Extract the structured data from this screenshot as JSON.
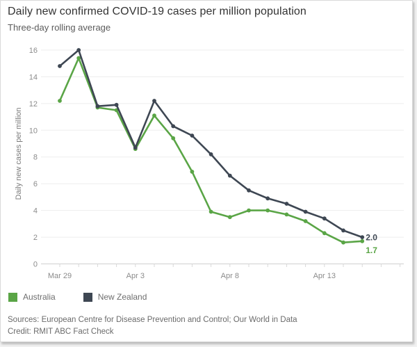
{
  "header": {
    "title": "Daily new confirmed COVID-19 cases per million population",
    "subtitle": "Three-day rolling average"
  },
  "chart_data": {
    "type": "line",
    "title": "Daily new confirmed COVID-19 cases per million population",
    "subtitle": "Three-day rolling average",
    "xlabel": "",
    "ylabel": "Daily new cases per million",
    "ylim": [
      0,
      16
    ],
    "yticks": [
      0,
      2,
      4,
      6,
      8,
      10,
      12,
      14,
      16
    ],
    "grid": "horizontal",
    "legend_position": "bottom-left",
    "num_points": 17,
    "trailing_empty_slots": 2,
    "x_tick_labels": [
      {
        "slot": 0,
        "label": "Mar 29"
      },
      {
        "slot": 4,
        "label": "Apr 3"
      },
      {
        "slot": 9,
        "label": "Apr 8"
      },
      {
        "slot": 14,
        "label": "Apr 13"
      }
    ],
    "series": [
      {
        "name": "Australia",
        "color": "#5aa546",
        "end_label": "1.7",
        "values": [
          12.2,
          15.4,
          11.7,
          11.5,
          8.6,
          11.1,
          9.4,
          6.9,
          3.9,
          3.5,
          4.0,
          4.0,
          3.7,
          3.2,
          2.3,
          1.6,
          1.7
        ]
      },
      {
        "name": "New Zealand",
        "color": "#3e4753",
        "end_label": "2.0",
        "values": [
          14.8,
          16.0,
          11.8,
          11.9,
          8.7,
          12.2,
          10.3,
          9.6,
          8.2,
          6.6,
          5.5,
          4.9,
          4.5,
          3.9,
          3.4,
          2.5,
          2.0
        ]
      }
    ]
  },
  "footer": {
    "sources": "Sources: European Centre for Disease Prevention and Control; Our World in Data",
    "credit": "Credit: RMIT ABC Fact Check"
  }
}
